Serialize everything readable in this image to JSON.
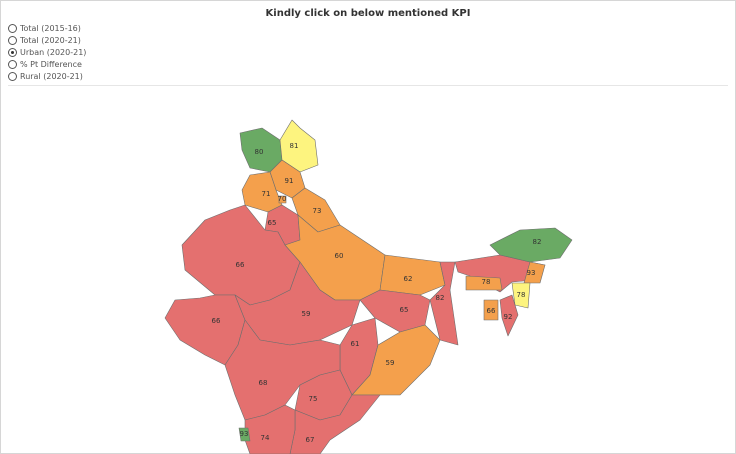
{
  "header": {
    "title": "Kindly click on below mentioned KPI"
  },
  "kpi_options": [
    {
      "label": "Total (2015-16)",
      "selected": false
    },
    {
      "label": "Total (2020-21)",
      "selected": false
    },
    {
      "label": "Urban (2020-21)",
      "selected": true
    },
    {
      "label": "% Pt Difference",
      "selected": false
    },
    {
      "label": "Rural (2020-21)",
      "selected": false
    }
  ],
  "map": {
    "regions": [
      {
        "value": 80,
        "color": "#6aaa64"
      },
      {
        "value": 81,
        "color": "#fdf47f"
      },
      {
        "value": 91,
        "color": "#f4a04c"
      },
      {
        "value": 71,
        "color": "#f4a04c"
      },
      {
        "value": 70,
        "color": "#f4a04c"
      },
      {
        "value": 73,
        "color": "#f4a04c"
      },
      {
        "value": 65,
        "color": "#e4706f"
      },
      {
        "value": 66,
        "color": "#e4706f"
      },
      {
        "value": 60,
        "color": "#f4a04c"
      },
      {
        "value": 62,
        "color": "#f4a04c"
      },
      {
        "value": 66,
        "color": "#e4706f"
      },
      {
        "value": 59,
        "color": "#e4706f"
      },
      {
        "value": 65,
        "color": "#e4706f"
      },
      {
        "value": 82,
        "color": "#e4706f"
      },
      {
        "value": 61,
        "color": "#e4706f"
      },
      {
        "value": 59,
        "color": "#f4a04c"
      },
      {
        "value": 68,
        "color": "#e4706f"
      },
      {
        "value": 75,
        "color": "#e4706f"
      },
      {
        "value": 67,
        "color": "#e4706f"
      },
      {
        "value": 74,
        "color": "#e4706f"
      },
      {
        "value": 93,
        "color": "#6aaa64"
      },
      {
        "value": 82,
        "color": "#6aaa64"
      },
      {
        "value": 78,
        "color": "#f4a04c"
      },
      {
        "value": 93,
        "color": "#f4a04c"
      },
      {
        "value": 78,
        "color": "#fdf47f"
      },
      {
        "value": 66,
        "color": "#f4a04c"
      },
      {
        "value": 92,
        "color": "#e4706f"
      }
    ]
  }
}
